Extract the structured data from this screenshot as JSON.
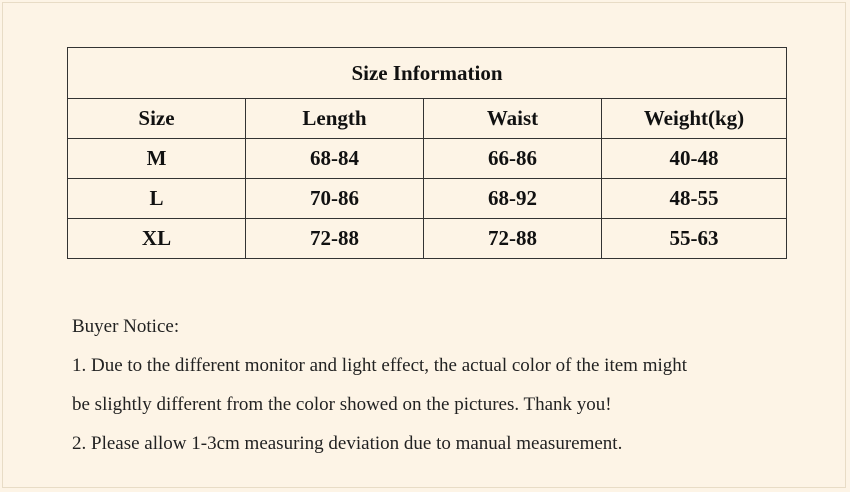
{
  "size_table": {
    "title": "Size Information",
    "headers": [
      "Size",
      "Length",
      "Waist",
      "Weight(kg)"
    ],
    "rows": [
      [
        "M",
        "68-84",
        "66-86",
        "40-48"
      ],
      [
        "L",
        "70-86",
        "68-92",
        "48-55"
      ],
      [
        "XL",
        "72-88",
        "72-88",
        "55-63"
      ]
    ]
  },
  "notice": {
    "heading": "Buyer Notice:",
    "line1": "1. Due to the different monitor and light effect, the actual color of the item might",
    "line2": "be slightly different from the color showed on the pictures. Thank you!",
    "line3": "2. Please allow 1-3cm measuring deviation due to manual measurement."
  }
}
